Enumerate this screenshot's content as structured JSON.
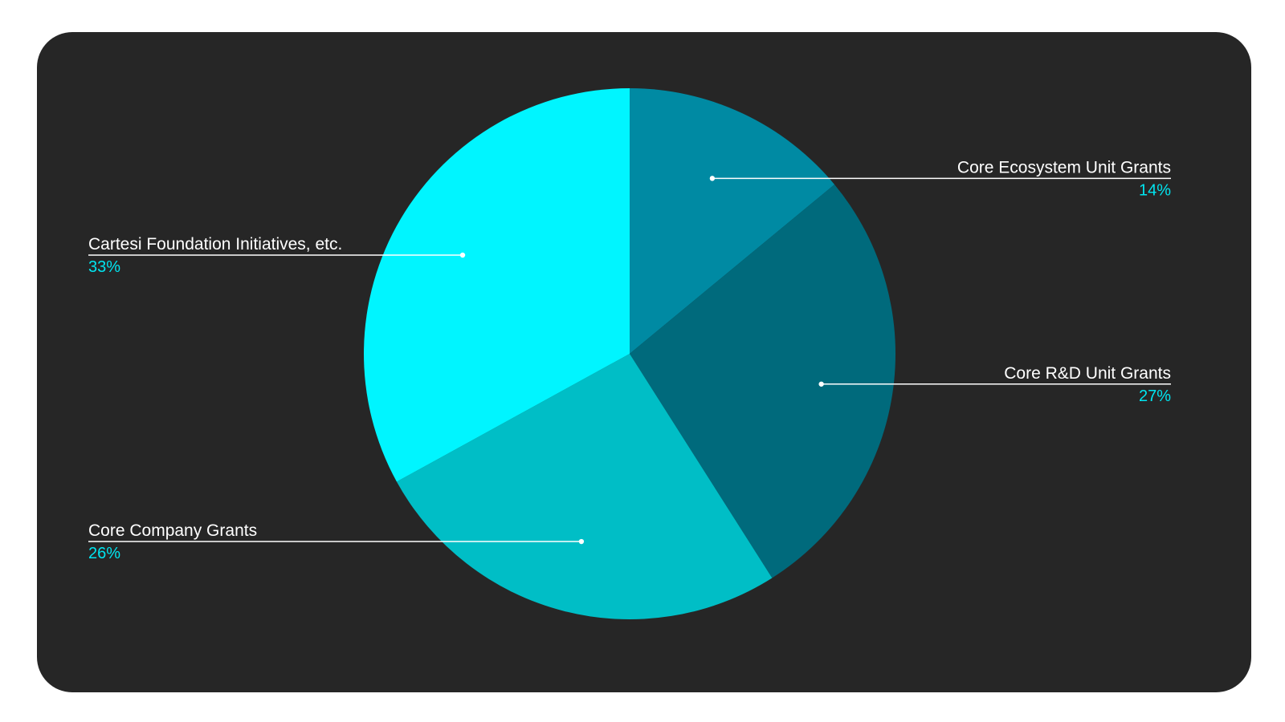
{
  "colors": {
    "background": "#262626",
    "leader": "#ffffff",
    "percent_text": "#00e5f0"
  },
  "chart_data": {
    "type": "pie",
    "start_angle_deg": 0,
    "direction": "clockwise",
    "legend": "none",
    "slices": [
      {
        "label": "Core Ecosystem Unit Grants",
        "value": 14,
        "value_label": "14%",
        "color": "#008aa3",
        "side": "right"
      },
      {
        "label": "Core R&D Unit Grants",
        "value": 27,
        "value_label": "27%",
        "color": "#006a7c",
        "side": "right"
      },
      {
        "label": "Core Company Grants",
        "value": 26,
        "value_label": "26%",
        "color": "#00bec6",
        "side": "left"
      },
      {
        "label": "Cartesi Foundation Initiatives, etc.",
        "value": 33,
        "value_label": "33%",
        "color": "#00f5ff",
        "side": "left"
      }
    ]
  }
}
